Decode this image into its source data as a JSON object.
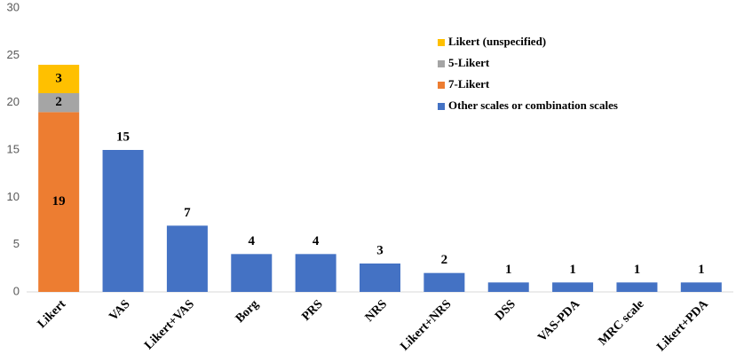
{
  "chart_data": {
    "type": "stacked-bar",
    "categories": [
      "Likert",
      "VAS",
      "Likert+VAS",
      "Borg",
      "PRS",
      "NRS",
      "Likert+NRS",
      "DSS",
      "VAS-PDA",
      "MRC scale",
      "Likert+PDA"
    ],
    "series": [
      {
        "name": "Other scales or combination scales",
        "color": "#4472c4",
        "values": [
          null,
          15,
          7,
          4,
          4,
          3,
          2,
          1,
          1,
          1,
          1
        ]
      },
      {
        "name": "7-Likert",
        "color": "#ed7d31",
        "values": [
          19,
          null,
          null,
          null,
          null,
          null,
          null,
          null,
          null,
          null,
          null
        ]
      },
      {
        "name": "5-Likert",
        "color": "#a5a5a5",
        "values": [
          2,
          null,
          null,
          null,
          null,
          null,
          null,
          null,
          null,
          null,
          null
        ]
      },
      {
        "name": "Likert (unspecified)",
        "color": "#ffc000",
        "values": [
          3,
          null,
          null,
          null,
          null,
          null,
          null,
          null,
          null,
          null,
          null
        ]
      }
    ],
    "ylim": [
      0,
      30
    ],
    "yticks": [
      0,
      5,
      10,
      15,
      20,
      25,
      30
    ],
    "grid": false,
    "legend": "upper right"
  }
}
